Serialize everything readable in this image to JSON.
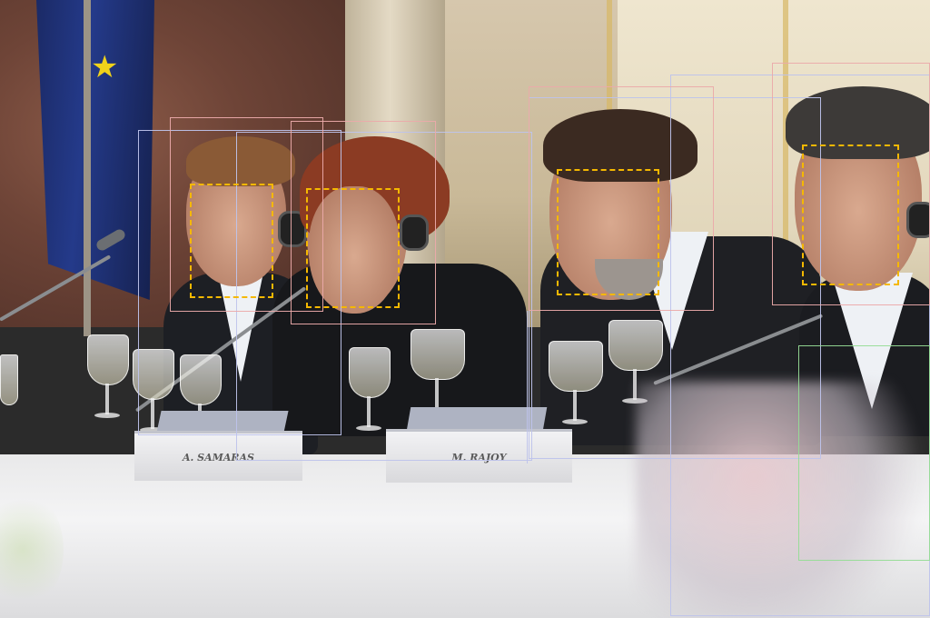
{
  "scene": {
    "description_free": true,
    "name_cards": [
      {
        "text": "A. SAMARAS"
      },
      {
        "text": "M. RAJOY"
      }
    ],
    "annotation_colors": {
      "person_box": "#c0c4ec",
      "head_box": "#eba6a6",
      "face_box": "#f5b800",
      "flower_box": "#96dc96"
    },
    "annotation_counts": {
      "person_boxes": 5,
      "head_boxes": 5,
      "face_boxes": 4,
      "flower_boxes": 1
    }
  }
}
